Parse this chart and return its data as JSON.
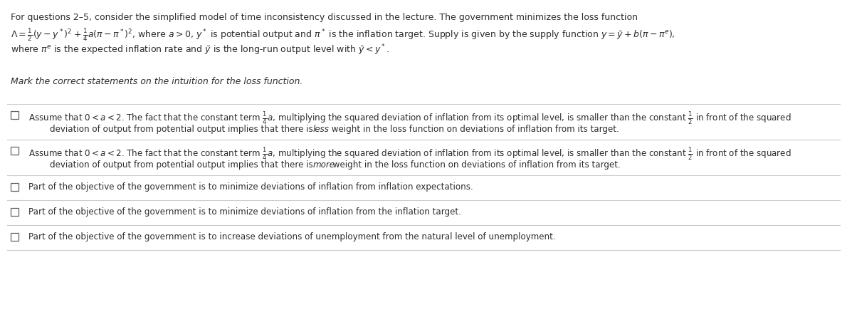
{
  "bg_color": "#ffffff",
  "text_color": "#2d2d2d",
  "line_color": "#cccccc",
  "header_line1": "For questions 2–5, consider the simplified model of time inconsistency discussed in the lecture. The government minimizes the loss function",
  "header_line2_pre": ", where $a > 0$, $y^*$ is potential output and $\\pi^*$ is the inflation target. Supply is given by the supply function $y = \\bar{y} + b(\\pi - \\pi^e)$,",
  "header_line3": "where $\\pi^e$ is the expected inflation rate and $\\bar{y}$ is the long-run output level with $\\bar{y} < y^*$.",
  "subheader": "Mark the correct statements on the intuition for the loss function.",
  "opt1_line1": "Assume that $0 < a < 2$. The fact that the constant term $\\frac{1}{4}a$, multiplying the squared deviation of inflation from its optimal level, is smaller than the constant $\\frac{1}{2}$ in front of the squared",
  "opt1_line2_pre": "deviation of output from potential output implies that there is ",
  "opt1_word": "less",
  "opt1_line2_post": " weight in the loss function on deviations of inflation from its target.",
  "opt2_line1": "Assume that $0 < a < 2$. The fact that the constant term $\\frac{1}{4}a$, multiplying the squared deviation of inflation from its optimal level, is smaller than the constant $\\frac{1}{2}$ in front of the squared",
  "opt2_line2_pre": "deviation of output from potential output implies that there is ",
  "opt2_word": "more",
  "opt2_line2_post": " weight in the loss function on deviations of inflation from its target.",
  "opt3": "Part of the objective of the government is to minimize deviations of inflation from inflation expectations.",
  "opt4": "Part of the objective of the government is to minimize deviations of inflation from the inflation target.",
  "opt5": "Part of the objective of the government is to increase deviations of unemployment from the natural level of unemployment.",
  "figsize": [
    11.9,
    4.6
  ],
  "dpi": 100
}
